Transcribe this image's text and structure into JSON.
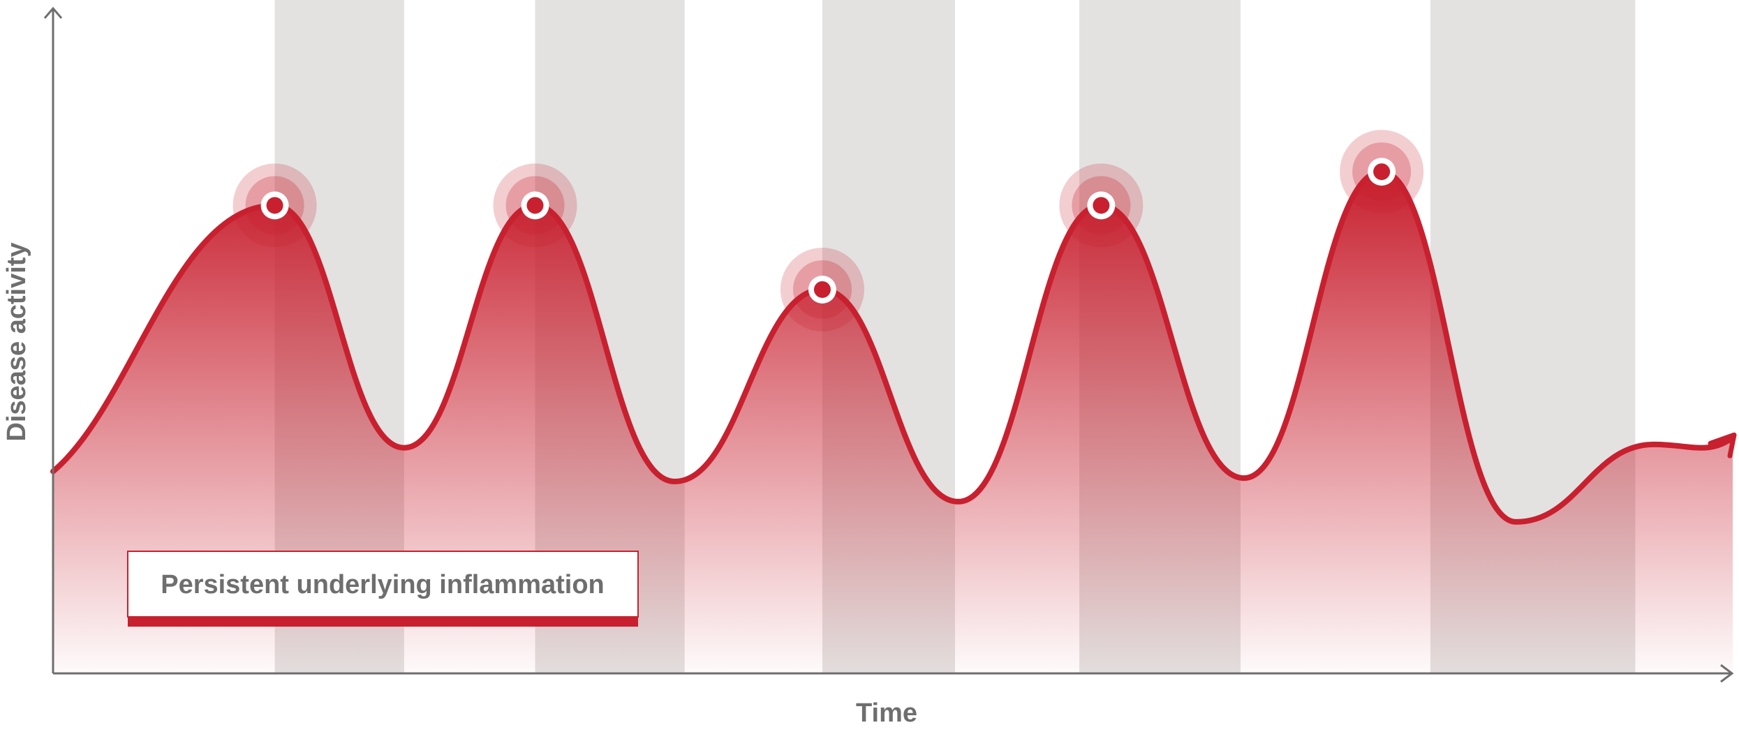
{
  "chart_data": {
    "type": "area",
    "title": "",
    "xlabel": "Time",
    "ylabel": "Disease activity",
    "xlim": [
      0,
      100
    ],
    "ylim": [
      0,
      100
    ],
    "grid": false,
    "legend": "none",
    "series": [
      {
        "values_x": [
          0,
          13.2,
          20.9,
          28.7,
          37.0,
          45.8,
          53.9,
          62.4,
          70.9,
          79.1,
          87.1,
          95.3,
          100
        ],
        "values_y": [
          30,
          69.5,
          33.5,
          69.5,
          28.5,
          57,
          25.5,
          69.5,
          29,
          74.5,
          22.5,
          34,
          35
        ]
      }
    ],
    "flare_peaks": [
      {
        "x": 13.2,
        "y": 69.5
      },
      {
        "x": 28.7,
        "y": 69.5
      },
      {
        "x": 45.8,
        "y": 57
      },
      {
        "x": 62.4,
        "y": 69.5
      },
      {
        "x": 79.1,
        "y": 74.5
      }
    ],
    "shaded_bands": [
      {
        "x0": 13.2,
        "x1": 20.9
      },
      {
        "x0": 28.7,
        "x1": 37.6
      },
      {
        "x0": 45.8,
        "x1": 53.7
      },
      {
        "x0": 61.1,
        "x1": 70.7
      },
      {
        "x0": 82.0,
        "x1": 94.2
      }
    ],
    "annotation": "Persistent underlying inflammation",
    "colors": {
      "line": "#c8202f",
      "fill_top": "#c8202f",
      "band": "#e3e2e1",
      "axis": "#6e6e6e",
      "text": "#6e6e6e"
    }
  }
}
